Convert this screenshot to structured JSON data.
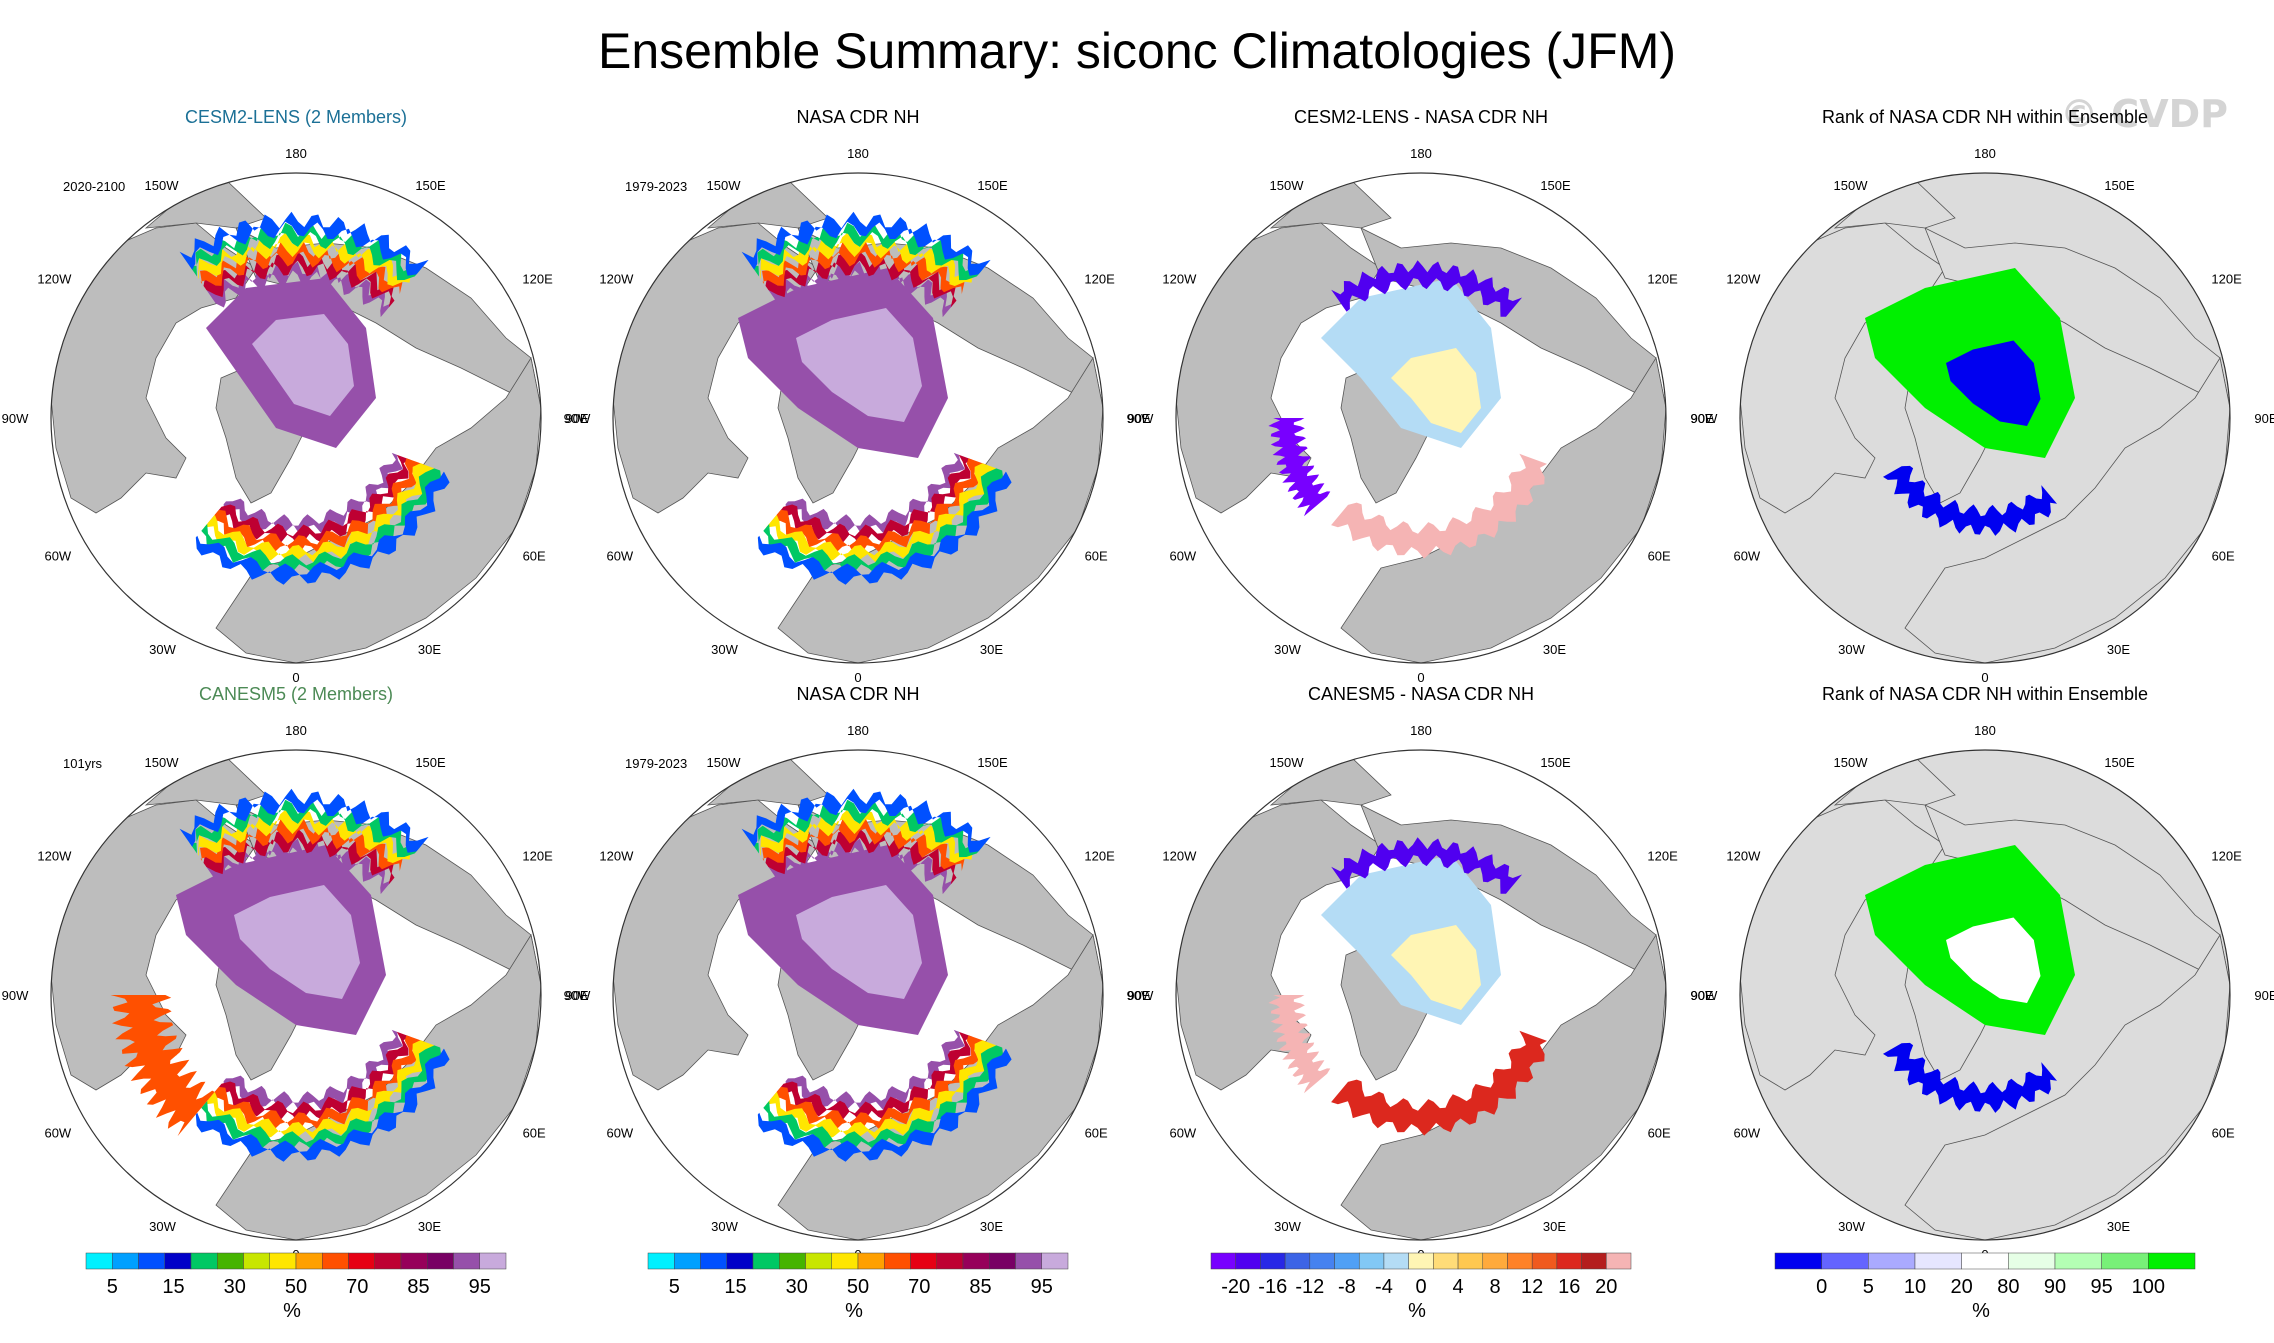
{
  "title": "Ensemble Summary: siconc Climatologies (JFM)",
  "watermark": "© CVDP",
  "labels": {
    "lon_top": "180",
    "lon_bottom": "0",
    "lon_150w": "150W",
    "lon_150e": "150E",
    "lon_120w": "120W",
    "lon_120e": "120E",
    "lon_90w": "90W",
    "lon_90e": "90E",
    "lon_60w": "60W",
    "lon_60e": "60E",
    "lon_30w": "30W",
    "lon_30e": "30E"
  },
  "colors": {
    "land": "#bdbdbd",
    "background": "#ffffff",
    "grey_mask": "#dcdcdc",
    "cesm_title": "#1b7096",
    "canesm_title": "#4c8a55"
  },
  "chart_data": [
    {
      "type": "heatmap",
      "projection": "north-polar-stereographic",
      "title": "CESM2-LENS (2 Members)",
      "subtitle": "2020-2100",
      "palette": "siconc",
      "pattern": "model_cesm"
    },
    {
      "type": "heatmap",
      "projection": "north-polar-stereographic",
      "title": "NASA CDR NH",
      "subtitle": "1979-2023",
      "palette": "siconc",
      "pattern": "obs"
    },
    {
      "type": "heatmap",
      "projection": "north-polar-stereographic",
      "title": "CESM2-LENS - NASA CDR NH",
      "subtitle": "",
      "palette": "diff",
      "pattern": "diff_cesm"
    },
    {
      "type": "heatmap",
      "projection": "north-polar-stereographic",
      "title": "Rank of NASA CDR NH within Ensemble",
      "subtitle": "",
      "palette": "rank",
      "pattern": "rank_cesm"
    },
    {
      "type": "heatmap",
      "projection": "north-polar-stereographic",
      "title": "CANESM5 (2 Members)",
      "subtitle": "101yrs",
      "palette": "siconc",
      "pattern": "model_canesm"
    },
    {
      "type": "heatmap",
      "projection": "north-polar-stereographic",
      "title": "NASA CDR NH",
      "subtitle": "1979-2023",
      "palette": "siconc",
      "pattern": "obs"
    },
    {
      "type": "heatmap",
      "projection": "north-polar-stereographic",
      "title": "CANESM5 - NASA CDR NH",
      "subtitle": "",
      "palette": "diff",
      "pattern": "diff_canesm"
    },
    {
      "type": "heatmap",
      "projection": "north-polar-stereographic",
      "title": "Rank of NASA CDR NH within Ensemble",
      "subtitle": "",
      "palette": "rank",
      "pattern": "rank_canesm"
    }
  ],
  "colorbars": [
    {
      "palette": "siconc",
      "unit": "%",
      "colors": [
        "#00f0ff",
        "#00a0ff",
        "#0050ff",
        "#0000c8",
        "#00c864",
        "#46b400",
        "#c8e600",
        "#ffe600",
        "#ffa000",
        "#ff5000",
        "#e60014",
        "#be0032",
        "#96005a",
        "#780064",
        "#9650aa",
        "#c8aadc"
      ],
      "tick_labels": [
        "5",
        "15",
        "30",
        "50",
        "70",
        "85",
        "95"
      ]
    },
    {
      "palette": "siconc",
      "unit": "%",
      "colors": [
        "#00f0ff",
        "#00a0ff",
        "#0050ff",
        "#0000c8",
        "#00c864",
        "#46b400",
        "#c8e600",
        "#ffe600",
        "#ffa000",
        "#ff5000",
        "#e60014",
        "#be0032",
        "#96005a",
        "#780064",
        "#9650aa",
        "#c8aadc"
      ],
      "tick_labels": [
        "5",
        "15",
        "30",
        "50",
        "70",
        "85",
        "95"
      ]
    },
    {
      "palette": "diff",
      "unit": "%",
      "colors": [
        "#7800ff",
        "#5000f0",
        "#2828e6",
        "#3c64e6",
        "#4682f0",
        "#50a0f5",
        "#82c8f5",
        "#b4dcf5",
        "#fff5b4",
        "#ffdc78",
        "#ffc850",
        "#ffaa3c",
        "#ff8228",
        "#f05a1e",
        "#dc281e",
        "#b41e1e",
        "#f5b4b4"
      ],
      "tick_labels": [
        "-20",
        "-16",
        "-12",
        "-8",
        "-4",
        "0",
        "4",
        "8",
        "12",
        "16",
        "20"
      ]
    },
    {
      "palette": "rank",
      "unit": "%",
      "colors": [
        "#0000f0",
        "#6464ff",
        "#aaaaff",
        "#e6e6ff",
        "#ffffff",
        "#e6ffe6",
        "#b4ffb4",
        "#78f078",
        "#00f000"
      ],
      "tick_labels": [
        "0",
        "5",
        "10",
        "20",
        "80",
        "90",
        "95",
        "100"
      ]
    }
  ]
}
